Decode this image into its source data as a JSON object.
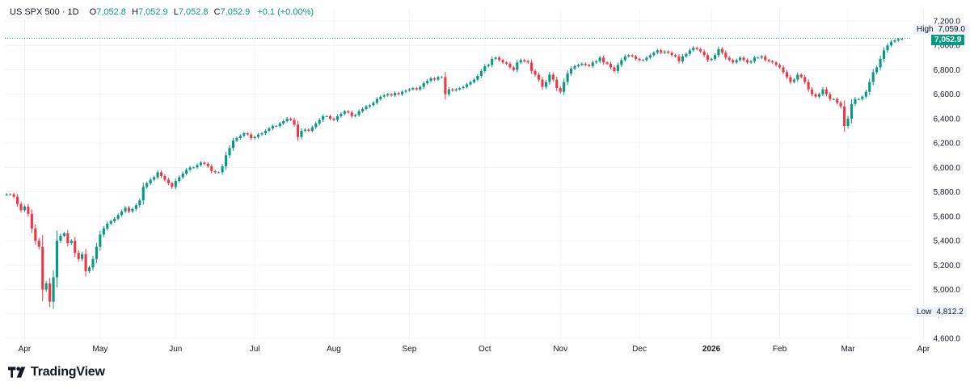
{
  "legend": {
    "symbol": "US SPX 500 · 1D",
    "o_label": "O",
    "o_value": "7,052.8",
    "h_label": "H",
    "h_value": "7,052.9",
    "l_label": "L",
    "l_value": "7,052.8",
    "c_label": "C",
    "c_value": "7,052.9",
    "change": "+0.1 (+0.00%)"
  },
  "tags": {
    "high_label": "High",
    "high_value": "7,059.0",
    "last_value": "7,052.9",
    "low_label": "Low",
    "low_value": "4,812.2"
  },
  "brand": {
    "name": "TradingView",
    "logo_icon": "tradingview-logo-icon"
  },
  "colors": {
    "up": "#089981",
    "down": "#f23645",
    "grid": "#f0f3fa",
    "high_line": "#089981"
  },
  "chart_data": {
    "type": "candlestick",
    "symbol": "US SPX 500",
    "interval": "1D",
    "ylim": [
      4600,
      7200
    ],
    "y_ticks": [
      "7,200.0",
      "7,000.0",
      "6,800.0",
      "6,600.0",
      "6,400.0",
      "6,200.0",
      "6,000.0",
      "5,800.0",
      "5,600.0",
      "5,400.0",
      "5,200.0",
      "5,000.0",
      "4,800.0",
      "4,600.0"
    ],
    "y_tick_values": [
      7200,
      7000,
      6800,
      6600,
      6400,
      6200,
      6000,
      5800,
      5600,
      5400,
      5200,
      5000,
      4800,
      4600
    ],
    "x_labels": [
      "Apr",
      "May",
      "Jun",
      "Jul",
      "Aug",
      "Sep",
      "Oct",
      "Nov",
      "Dec",
      "2026",
      "Feb",
      "Mar",
      "Apr"
    ],
    "x_label_bar_index": [
      5,
      26,
      47,
      69,
      91,
      112,
      133,
      154,
      176,
      196,
      215,
      234,
      255
    ],
    "grid": true,
    "high": 7059.0,
    "low": 4812.2,
    "last": 7052.9,
    "closes": [
      5780,
      5780,
      5760,
      5700,
      5650,
      5680,
      5620,
      5500,
      5400,
      5350,
      5000,
      5050,
      4900,
      5100,
      5400,
      5440,
      5460,
      5380,
      5400,
      5300,
      5250,
      5290,
      5150,
      5180,
      5250,
      5350,
      5450,
      5500,
      5540,
      5560,
      5580,
      5610,
      5640,
      5670,
      5640,
      5660,
      5690,
      5730,
      5840,
      5870,
      5900,
      5920,
      5960,
      5930,
      5900,
      5870,
      5840,
      5890,
      5920,
      5950,
      5980,
      6000,
      6000,
      6020,
      6040,
      6030,
      6010,
      5970,
      5960,
      5960,
      6010,
      6100,
      6160,
      6220,
      6240,
      6260,
      6280,
      6270,
      6240,
      6250,
      6270,
      6280,
      6300,
      6320,
      6340,
      6340,
      6360,
      6380,
      6400,
      6390,
      6350,
      6250,
      6300,
      6310,
      6300,
      6330,
      6360,
      6390,
      6420,
      6420,
      6400,
      6390,
      6420,
      6440,
      6460,
      6450,
      6420,
      6430,
      6460,
      6480,
      6500,
      6510,
      6530,
      6560,
      6580,
      6590,
      6600,
      6590,
      6610,
      6600,
      6620,
      6630,
      6640,
      6650,
      6640,
      6660,
      6690,
      6710,
      6730,
      6720,
      6740,
      6740,
      6600,
      6640,
      6630,
      6640,
      6650,
      6660,
      6680,
      6700,
      6720,
      6750,
      6790,
      6830,
      6840,
      6890,
      6900,
      6880,
      6860,
      6850,
      6820,
      6800,
      6860,
      6880,
      6870,
      6860,
      6790,
      6760,
      6720,
      6660,
      6700,
      6760,
      6720,
      6650,
      6620,
      6700,
      6770,
      6810,
      6830,
      6840,
      6850,
      6840,
      6830,
      6860,
      6870,
      6900,
      6860,
      6850,
      6820,
      6790,
      6840,
      6880,
      6910,
      6920,
      6910,
      6890,
      6880,
      6880,
      6900,
      6920,
      6940,
      6960,
      6940,
      6950,
      6940,
      6920,
      6910,
      6870,
      6910,
      6930,
      6960,
      6980,
      6970,
      6950,
      6920,
      6880,
      6890,
      6920,
      6970,
      6940,
      6900,
      6880,
      6860,
      6880,
      6900,
      6880,
      6860,
      6870,
      6900,
      6900,
      6910,
      6880,
      6870,
      6860,
      6840,
      6820,
      6780,
      6740,
      6700,
      6720,
      6760,
      6740,
      6700,
      6640,
      6600,
      6580,
      6600,
      6640,
      6600,
      6560,
      6560,
      6530,
      6500,
      6340,
      6400,
      6520,
      6560,
      6560,
      6580,
      6620,
      6700,
      6780,
      6820,
      6890,
      6960,
      7000,
      7030,
      7040,
      7050,
      7052.9
    ],
    "ohlc_note": "open = previous close; high/low extend slightly beyond body"
  }
}
